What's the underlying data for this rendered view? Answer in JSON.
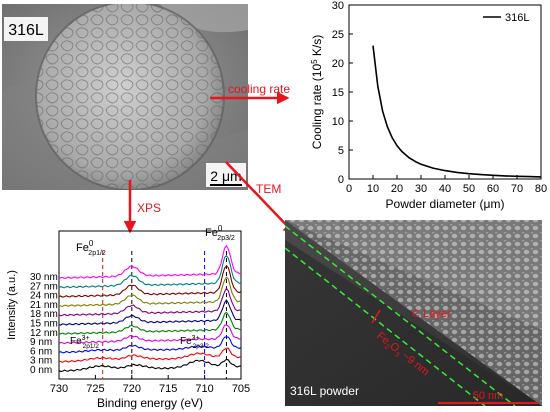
{
  "sem_panel": {
    "label": "316L",
    "scale_bar": "2 μm"
  },
  "arrows": {
    "cooling": "cooling rate",
    "xps": "XPS",
    "tem": "TEM"
  },
  "cooling_chart": {
    "type": "line",
    "xlabel": "Powder diameter (μm)",
    "ylabel_main": "Cooling rate (10",
    "ylabel_sup": "5",
    "ylabel_tail": " K/s)",
    "legend": "316L",
    "xlim": [
      0,
      80
    ],
    "ylim": [
      0,
      30
    ],
    "x_ticks": [
      0,
      10,
      20,
      30,
      40,
      50,
      60,
      70,
      80
    ],
    "y_ticks": [
      0,
      5,
      10,
      15,
      20,
      25,
      30
    ],
    "x": [
      10,
      12,
      14,
      16,
      18,
      20,
      22,
      25,
      28,
      30,
      35,
      40,
      45,
      50,
      55,
      60,
      65,
      70,
      75,
      80
    ],
    "y": [
      23.0,
      16.0,
      11.7,
      9.0,
      7.1,
      5.75,
      4.75,
      3.68,
      2.93,
      2.56,
      1.88,
      1.44,
      1.14,
      0.92,
      0.76,
      0.64,
      0.54,
      0.47,
      0.41,
      0.36
    ]
  },
  "xps_chart": {
    "type": "line",
    "xlabel": "Binding energy (eV)",
    "ylabel": "Intensity (a.u.)",
    "xlim": [
      730,
      705
    ],
    "x_ticks": [
      730,
      725,
      720,
      715,
      710,
      705
    ],
    "series": [
      {
        "name": "0 nm",
        "color": "#000000"
      },
      {
        "name": "3 nm",
        "color": "#ff0000"
      },
      {
        "name": "6 nm",
        "color": "#0000ff"
      },
      {
        "name": "9 nm",
        "color": "#e000e0"
      },
      {
        "name": "12 nm",
        "color": "#008000"
      },
      {
        "name": "15 nm",
        "color": "#000080"
      },
      {
        "name": "18 nm",
        "color": "#800080"
      },
      {
        "name": "21 nm",
        "color": "#808000"
      },
      {
        "name": "24 nm",
        "color": "#800000"
      },
      {
        "name": "27 nm",
        "color": "#008080"
      },
      {
        "name": "30 nm",
        "color": "#ff00ff"
      }
    ],
    "peaks": {
      "fe0_2p12": {
        "base": "Fe",
        "sup": "0",
        "sub": "2p1/2",
        "energy": 720
      },
      "fe0_2p32": {
        "base": "Fe",
        "sup": "0",
        "sub": "2p3/2",
        "energy": 707
      },
      "fe3_2p12": {
        "base": "Fe",
        "sup": "3+",
        "sub": "2p1/2",
        "energy": 724
      },
      "fe3_2p32": {
        "base": "Fe",
        "sup": "3+",
        "sub": "2p3/2",
        "energy": 710
      }
    }
  },
  "tem_panel": {
    "c_layer": "C Layer",
    "oxide_main": "Fe",
    "oxide_sub1": "2",
    "oxide_mid": "O",
    "oxide_sub2": "3",
    "oxide_tail": " ~9 nm",
    "caption": "316L powder",
    "scale": "50 nm"
  },
  "colors": {
    "arrow": "#e8141e",
    "oxide_dash": "#33ee33",
    "tem_text": "#e8141e"
  }
}
